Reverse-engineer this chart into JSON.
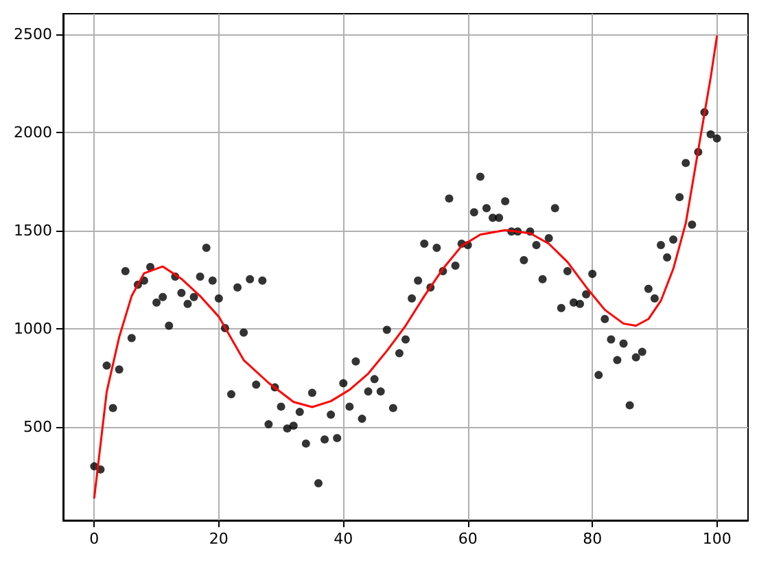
{
  "chart_data": {
    "type": "scatter",
    "xlim": [
      -5,
      105
    ],
    "ylim": [
      25,
      2605
    ],
    "xticks": [
      0,
      20,
      40,
      60,
      80,
      100
    ],
    "yticks": [
      500,
      1000,
      1500,
      2000,
      2500
    ],
    "grid": true,
    "series": [
      {
        "color": "#000000",
        "marker": "circle",
        "x": [
          0,
          1,
          2,
          3,
          4,
          5,
          6,
          7,
          8,
          9,
          10,
          11,
          12,
          13,
          14,
          15,
          16,
          17,
          18,
          19,
          20,
          21,
          22,
          23,
          24,
          25,
          26,
          27,
          28,
          29,
          30,
          31,
          32,
          33,
          34,
          35,
          36,
          37,
          38,
          39,
          40,
          41,
          42,
          43,
          44,
          45,
          46,
          47,
          48,
          49,
          50,
          51,
          52,
          53,
          54,
          55,
          56,
          57,
          58,
          59,
          60,
          61,
          62,
          63,
          64,
          65,
          66,
          67,
          68,
          69,
          70,
          71,
          72,
          73,
          74,
          75,
          76,
          77,
          78,
          79,
          80,
          81,
          82,
          83,
          84,
          85,
          86,
          87,
          88,
          89,
          90,
          91,
          92,
          93,
          94,
          95,
          96,
          97,
          98,
          99,
          100
        ],
        "values": [
          300,
          284,
          813,
          597,
          793,
          1294,
          953,
          1225,
          1246,
          1315,
          1134,
          1162,
          1016,
          1266,
          1183,
          1127,
          1162,
          1266,
          1413,
          1246,
          1155,
          1004,
          667,
          1211,
          981,
          1253,
          716,
          1246,
          514,
          702,
          604,
          493,
          507,
          577,
          416,
          674,
          214,
          437,
          563,
          444,
          723,
          604,
          834,
          542,
          681,
          744,
          681,
          995,
          597,
          876,
          946,
          1155,
          1246,
          1434,
          1211,
          1413,
          1294,
          1664,
          1322,
          1434,
          1427,
          1594,
          1775,
          1615,
          1566,
          1566,
          1650,
          1496,
          1496,
          1350,
          1496,
          1427,
          1253,
          1462,
          1615,
          1106,
          1294,
          1134,
          1127,
          1176,
          1280,
          765,
          1050,
          946,
          841,
          925,
          611,
          855,
          883,
          1204,
          1155,
          1427,
          1364,
          1455,
          1671,
          1845,
          1531,
          1901,
          2103,
          1991,
          1970
        ]
      },
      {
        "type": "line",
        "color": "#ff0000",
        "marker": "none",
        "line_style": "solid",
        "x": [
          0,
          2,
          4,
          6,
          8,
          11,
          14,
          17,
          20,
          24,
          28,
          32,
          35,
          38,
          41,
          44,
          47,
          50,
          53,
          56,
          59,
          62,
          66,
          70,
          73,
          76,
          79,
          82,
          85,
          87,
          89,
          91,
          93,
          95,
          97,
          98,
          99,
          100
        ],
        "values": [
          140,
          680,
          958,
          1167,
          1283,
          1318,
          1255,
          1167,
          1062,
          841,
          725,
          628,
          602,
          632,
          690,
          772,
          888,
          1016,
          1167,
          1306,
          1422,
          1480,
          1503,
          1487,
          1434,
          1341,
          1213,
          1097,
          1027,
          1016,
          1050,
          1143,
          1306,
          1538,
          1910,
          2096,
          2280,
          2490
        ]
      }
    ]
  }
}
